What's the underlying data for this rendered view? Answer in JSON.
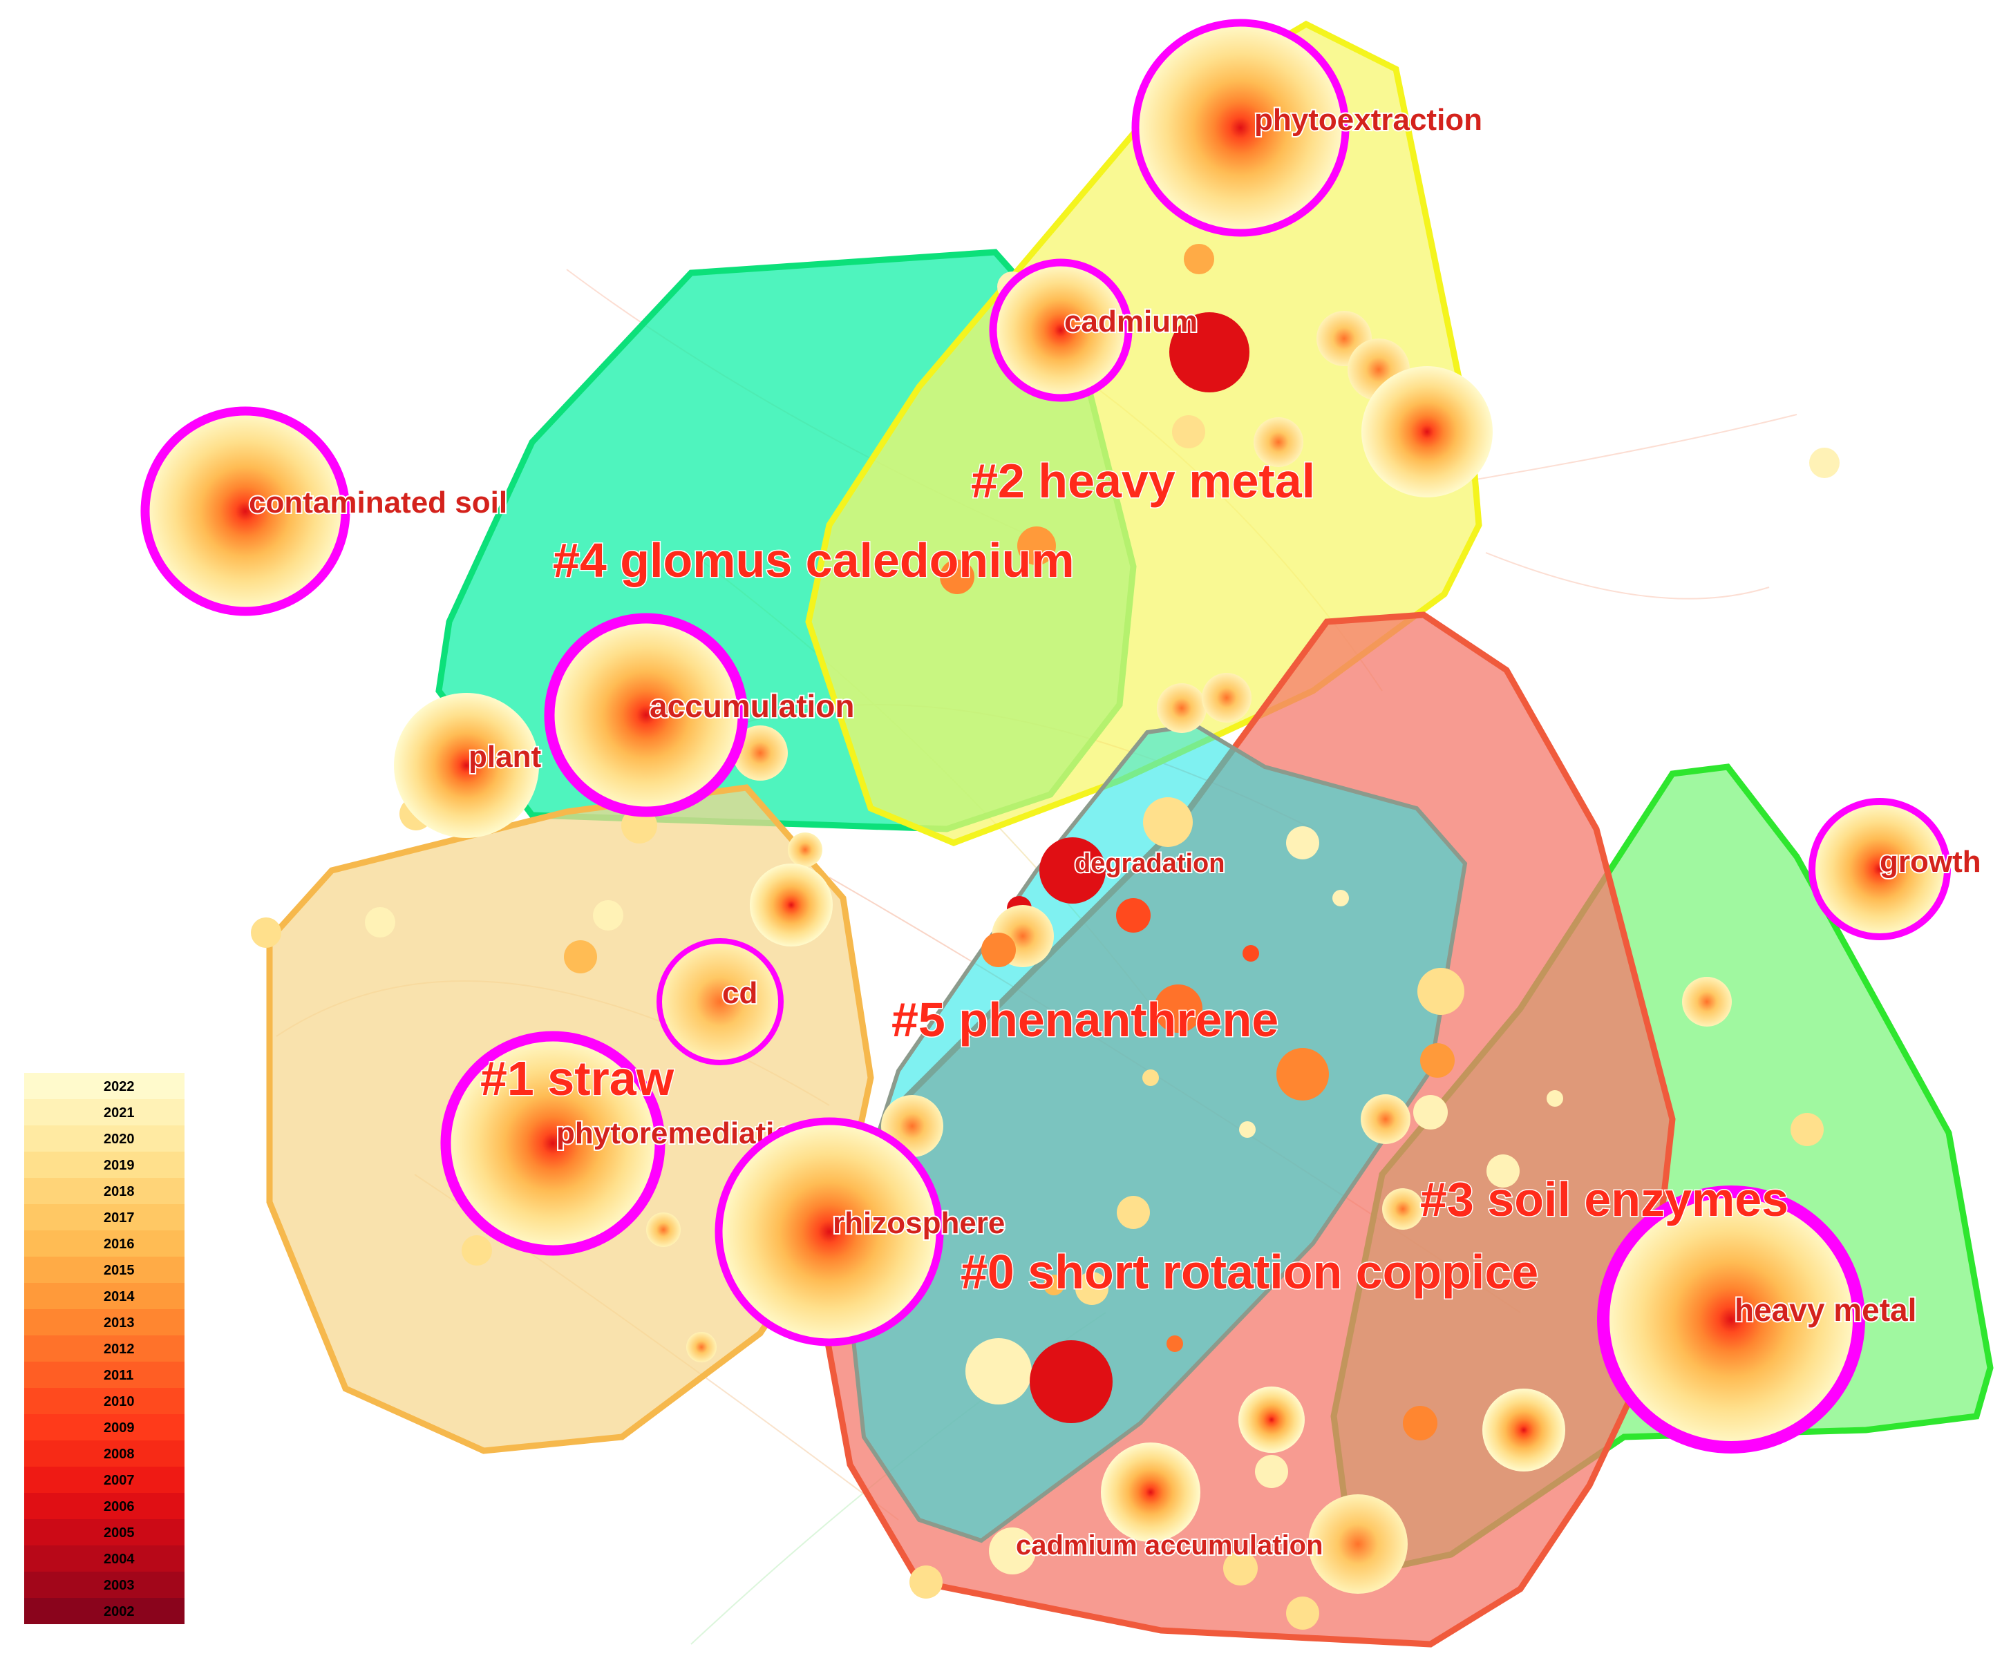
{
  "clusters": [
    {
      "id": "c4",
      "label": "#4 glomus caledonium",
      "fill": "#14f0a8",
      "stroke": "#0ce07a"
    },
    {
      "id": "c2",
      "label": "#2 heavy metal",
      "fill": "#f6f66a",
      "stroke": "#f4f41e"
    },
    {
      "id": "c1",
      "label": "#1 straw",
      "fill": "#f7d78e",
      "stroke": "#f6b84c"
    },
    {
      "id": "c0",
      "label": "#0 short rotation coppice",
      "fill": "#f47a6c",
      "stroke": "#f05a3c"
    },
    {
      "id": "c3",
      "label": "#3 soil enzymes",
      "fill": "#7cf57c",
      "stroke": "#2ee62e"
    },
    {
      "id": "c5",
      "label": "#5 phenanthrene",
      "fill": "#16e6e6",
      "stroke": "#8c9a8c"
    }
  ],
  "keywords": [
    {
      "id": "phytoextraction",
      "label": "phytoextraction",
      "burst": true
    },
    {
      "id": "cadmium",
      "label": "cadmium",
      "burst": true
    },
    {
      "id": "contaminated-soil",
      "label": "contaminated soil",
      "burst": true
    },
    {
      "id": "accumulation",
      "label": "accumulation",
      "burst": true
    },
    {
      "id": "plant",
      "label": "plant",
      "burst": false
    },
    {
      "id": "degradation",
      "label": "degradation",
      "burst": false
    },
    {
      "id": "growth",
      "label": "growth",
      "burst": true
    },
    {
      "id": "cd",
      "label": "cd",
      "burst": true
    },
    {
      "id": "phytoremediation",
      "label": "phytoremediation",
      "burst": true
    },
    {
      "id": "rhizosphere",
      "label": "rhizosphere",
      "burst": true
    },
    {
      "id": "heavy-metal",
      "label": "heavy metal",
      "burst": true
    },
    {
      "id": "cadmium-accumulation",
      "label": "cadmium accumulation",
      "burst": false
    }
  ],
  "legend": {
    "years": [
      "2022",
      "2021",
      "2020",
      "2019",
      "2018",
      "2017",
      "2016",
      "2015",
      "2014",
      "2013",
      "2012",
      "2011",
      "2010",
      "2009",
      "2008",
      "2007",
      "2006",
      "2005",
      "2004",
      "2003",
      "2002"
    ],
    "colors": [
      "#fffacc",
      "#fff2b6",
      "#ffeaa2",
      "#ffe08c",
      "#ffd478",
      "#ffc864",
      "#ffbc54",
      "#ffab46",
      "#ff9a3a",
      "#ff8630",
      "#ff722a",
      "#ff5e24",
      "#ff4a1e",
      "#ff3a1a",
      "#f72a16",
      "#ef1a14",
      "#e00f14",
      "#cc0a16",
      "#b80818",
      "#a2061a",
      "#8a041c"
    ]
  },
  "burst_ring_color": "#ff00ff"
}
